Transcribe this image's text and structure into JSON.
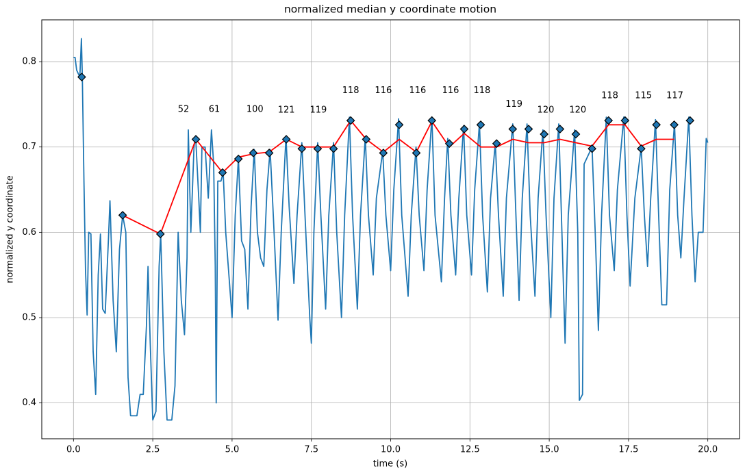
{
  "chart_data": {
    "type": "line",
    "title": "normalized median y coordinate motion",
    "xlabel": "time (s)",
    "ylabel": "normalized y coordinate",
    "xlim": [
      -1.0,
      21.0
    ],
    "ylim": [
      0.358,
      0.849
    ],
    "xticks": [
      {
        "value": 0,
        "label": "0.0"
      },
      2.5,
      {
        "value": 5,
        "label": "5.0"
      },
      7.5,
      {
        "value": 10,
        "label": "10.0"
      },
      12.5,
      {
        "value": 15,
        "label": "15.0"
      },
      17.5,
      {
        "value": 20,
        "label": "20.0"
      }
    ],
    "yticks": [
      0.4,
      0.5,
      0.6,
      0.7,
      0.8
    ],
    "grid": true,
    "series": [
      {
        "style": "line",
        "color": "#1f77b4",
        "x": [
          0,
          0.05,
          0.1,
          0.2,
          0.22,
          0.25,
          0.28,
          0.33,
          0.38,
          0.43,
          0.48,
          0.55,
          0.62,
          0.7,
          0.78,
          0.85,
          0.92,
          1.0,
          1.1,
          1.15,
          1.25,
          1.35,
          1.45,
          1.55,
          1.65,
          1.72,
          1.8,
          1.9,
          2.0,
          2.1,
          2.2,
          2.3,
          2.35,
          2.42,
          2.5,
          2.6,
          2.7,
          2.75,
          2.85,
          2.95,
          3.1,
          3.2,
          3.3,
          3.4,
          3.5,
          3.58,
          3.62,
          3.7,
          3.8,
          3.85,
          3.95,
          4.0,
          4.05,
          4.15,
          4.25,
          4.35,
          4.42,
          4.47,
          4.5,
          4.55,
          4.65,
          4.72,
          4.8,
          4.9,
          5.0,
          5.1,
          5.2,
          5.3,
          5.4,
          5.5,
          5.6,
          5.7,
          5.8,
          5.9,
          6.0,
          6.1,
          6.2,
          6.3,
          6.45,
          6.55,
          6.7,
          6.8,
          6.95,
          7.05,
          7.2,
          7.3,
          7.45,
          7.5,
          7.58,
          7.7,
          7.8,
          7.95,
          8.05,
          8.2,
          8.3,
          8.45,
          8.55,
          8.7,
          8.8,
          8.95,
          9.05,
          9.2,
          9.3,
          9.45,
          9.55,
          9.75,
          9.85,
          10.0,
          10.1,
          10.25,
          10.35,
          10.55,
          10.65,
          10.8,
          10.9,
          11.05,
          11.15,
          11.3,
          11.4,
          11.6,
          11.7,
          11.8,
          11.9,
          12.05,
          12.15,
          12.3,
          12.4,
          12.55,
          12.65,
          12.8,
          12.9,
          13.05,
          13.15,
          13.3,
          13.4,
          13.55,
          13.65,
          13.85,
          13.95,
          14.05,
          14.15,
          14.3,
          14.4,
          14.55,
          14.65,
          14.8,
          14.9,
          15.05,
          15.15,
          15.3,
          15.4,
          15.5,
          15.6,
          15.8,
          15.9,
          15.95,
          16.05,
          16.1,
          16.35,
          16.45,
          16.55,
          16.65,
          16.8,
          16.9,
          17.05,
          17.15,
          17.35,
          17.45,
          17.55,
          17.7,
          17.9,
          18.0,
          18.1,
          18.2,
          18.35,
          18.45,
          18.55,
          18.7,
          18.8,
          18.95,
          19.05,
          19.15,
          19.25,
          19.4,
          19.5,
          19.6,
          19.7,
          19.85,
          19.95,
          20.0
        ],
        "values": [
          0.805,
          0.805,
          0.79,
          0.782,
          0.8,
          0.827,
          0.78,
          0.66,
          0.555,
          0.503,
          0.6,
          0.598,
          0.46,
          0.41,
          0.55,
          0.598,
          0.51,
          0.505,
          0.59,
          0.637,
          0.52,
          0.46,
          0.58,
          0.62,
          0.6,
          0.43,
          0.385,
          0.385,
          0.385,
          0.41,
          0.41,
          0.49,
          0.56,
          0.47,
          0.38,
          0.39,
          0.56,
          0.598,
          0.46,
          0.38,
          0.38,
          0.42,
          0.6,
          0.52,
          0.48,
          0.57,
          0.72,
          0.6,
          0.7,
          0.713,
          0.64,
          0.6,
          0.7,
          0.7,
          0.64,
          0.72,
          0.68,
          0.56,
          0.4,
          0.66,
          0.66,
          0.67,
          0.6,
          0.55,
          0.5,
          0.62,
          0.687,
          0.59,
          0.58,
          0.51,
          0.63,
          0.697,
          0.6,
          0.57,
          0.56,
          0.65,
          0.697,
          0.62,
          0.497,
          0.6,
          0.712,
          0.63,
          0.54,
          0.62,
          0.705,
          0.62,
          0.5,
          0.47,
          0.6,
          0.705,
          0.62,
          0.51,
          0.62,
          0.705,
          0.6,
          0.5,
          0.62,
          0.735,
          0.62,
          0.51,
          0.62,
          0.712,
          0.62,
          0.55,
          0.64,
          0.695,
          0.62,
          0.555,
          0.65,
          0.733,
          0.62,
          0.525,
          0.62,
          0.7,
          0.62,
          0.555,
          0.65,
          0.735,
          0.62,
          0.542,
          0.64,
          0.71,
          0.62,
          0.55,
          0.64,
          0.725,
          0.62,
          0.55,
          0.65,
          0.728,
          0.62,
          0.53,
          0.64,
          0.705,
          0.62,
          0.525,
          0.64,
          0.727,
          0.62,
          0.52,
          0.64,
          0.727,
          0.62,
          0.525,
          0.64,
          0.72,
          0.62,
          0.5,
          0.64,
          0.727,
          0.6,
          0.47,
          0.62,
          0.72,
          0.6,
          0.403,
          0.41,
          0.68,
          0.7,
          0.6,
          0.485,
          0.62,
          0.735,
          0.62,
          0.555,
          0.65,
          0.735,
          0.62,
          0.537,
          0.64,
          0.7,
          0.62,
          0.56,
          0.64,
          0.732,
          0.62,
          0.515,
          0.515,
          0.65,
          0.728,
          0.62,
          0.57,
          0.64,
          0.735,
          0.62,
          0.542,
          0.6,
          0.6,
          0.71,
          0.705
        ]
      },
      {
        "style": "line",
        "color": "#ff0000",
        "x": [
          1.55,
          2.74,
          3.86,
          4.7,
          5.2,
          5.67,
          6.17,
          6.71,
          7.2,
          7.7,
          8.2,
          8.74,
          9.23,
          9.77,
          10.27,
          10.81,
          11.3,
          11.85,
          12.32,
          12.84,
          13.34,
          13.85,
          14.35,
          14.84,
          15.34,
          15.84,
          16.35,
          16.87,
          17.39,
          17.9,
          18.38,
          18.94
        ],
        "values": [
          0.62,
          0.598,
          0.709,
          0.67,
          0.688,
          0.692,
          0.694,
          0.709,
          0.7,
          0.7,
          0.7,
          0.731,
          0.709,
          0.694,
          0.709,
          0.694,
          0.73,
          0.7,
          0.716,
          0.7,
          0.7,
          0.709,
          0.705,
          0.705,
          0.709,
          0.705,
          0.701,
          0.726,
          0.726,
          0.701,
          0.709,
          0.709
        ]
      },
      {
        "style": "markers",
        "color": "#1f77b4",
        "x": [
          0.26,
          1.55,
          2.74,
          3.86,
          4.7,
          5.2,
          5.67,
          6.17,
          6.71,
          7.2,
          7.7,
          8.2,
          8.74,
          9.23,
          9.77,
          10.27,
          10.81,
          11.3,
          11.85,
          12.32,
          12.84,
          13.34,
          13.85,
          14.35,
          14.84,
          15.34,
          15.84,
          16.35,
          16.87,
          17.39,
          17.9,
          18.38,
          18.94,
          19.44
        ],
        "values": [
          0.782,
          0.62,
          0.598,
          0.709,
          0.67,
          0.686,
          0.693,
          0.693,
          0.709,
          0.698,
          0.698,
          0.698,
          0.731,
          0.709,
          0.693,
          0.726,
          0.693,
          0.731,
          0.704,
          0.721,
          0.726,
          0.704,
          0.721,
          0.721,
          0.715,
          0.721,
          0.715,
          0.698,
          0.731,
          0.731,
          0.698,
          0.726,
          0.726,
          0.731
        ]
      }
    ],
    "annotations": [
      {
        "x": 3.47,
        "y": 0.744,
        "value": 52
      },
      {
        "x": 4.44,
        "y": 0.744,
        "value": 61
      },
      {
        "x": 5.72,
        "y": 0.744,
        "value": 100
      },
      {
        "x": 6.71,
        "y": 0.743,
        "value": 121
      },
      {
        "x": 7.72,
        "y": 0.743,
        "value": 119
      },
      {
        "x": 8.74,
        "y": 0.766,
        "value": 118
      },
      {
        "x": 9.77,
        "y": 0.766,
        "value": 116
      },
      {
        "x": 10.85,
        "y": 0.766,
        "value": 116
      },
      {
        "x": 11.89,
        "y": 0.766,
        "value": 116
      },
      {
        "x": 12.88,
        "y": 0.766,
        "value": 118
      },
      {
        "x": 13.89,
        "y": 0.75,
        "value": 119
      },
      {
        "x": 14.89,
        "y": 0.743,
        "value": 120
      },
      {
        "x": 15.9,
        "y": 0.743,
        "value": 120
      },
      {
        "x": 16.91,
        "y": 0.76,
        "value": 118
      },
      {
        "x": 17.97,
        "y": 0.76,
        "value": 115
      },
      {
        "x": 18.96,
        "y": 0.76,
        "value": 117
      }
    ]
  }
}
